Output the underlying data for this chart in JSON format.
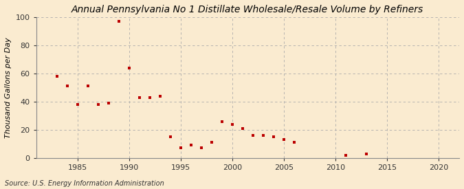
{
  "title": "Annual Pennsylvania No 1 Distillate Wholesale/Resale Volume by Refiners",
  "ylabel": "Thousand Gallons per Day",
  "source": "Source: U.S. Energy Information Administration",
  "background_color": "#faebd0",
  "plot_background_color": "#faebd0",
  "marker_color": "#bb0000",
  "marker": "s",
  "markersize": 3.5,
  "years": [
    1983,
    1984,
    1985,
    1986,
    1987,
    1988,
    1989,
    1990,
    1991,
    1992,
    1993,
    1994,
    1995,
    1996,
    1997,
    1998,
    1999,
    2000,
    2001,
    2002,
    2003,
    2004,
    2005,
    2006,
    2011,
    2013
  ],
  "values": [
    58,
    51,
    38,
    51,
    38,
    39,
    97,
    64,
    43,
    43,
    44,
    15,
    7,
    9,
    7,
    11,
    26,
    24,
    21,
    16,
    16,
    15,
    13,
    11,
    2,
    3
  ],
  "xlim": [
    1981,
    2022
  ],
  "ylim": [
    0,
    100
  ],
  "xticks": [
    1985,
    1990,
    1995,
    2000,
    2005,
    2010,
    2015,
    2020
  ],
  "yticks": [
    0,
    20,
    40,
    60,
    80,
    100
  ],
  "grid_color": "#aaaaaa",
  "grid_style": "--",
  "title_fontsize": 10,
  "label_fontsize": 8,
  "tick_fontsize": 8,
  "source_fontsize": 7
}
